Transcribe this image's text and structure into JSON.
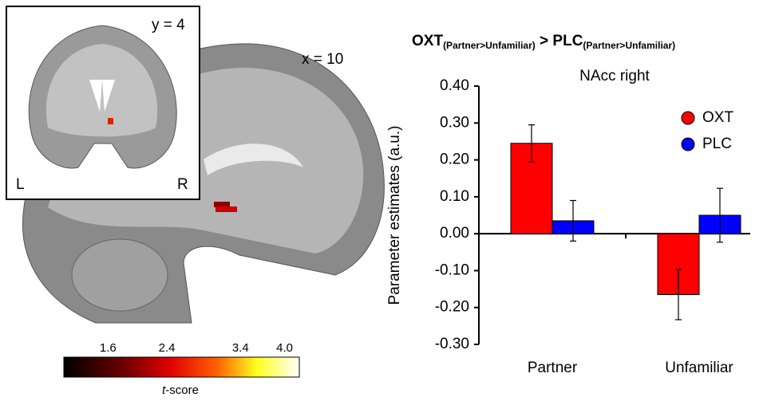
{
  "chart_data": {
    "type": "bar",
    "title": {
      "main1": "OXT",
      "sub1": "(Partner>Unfamiliar)",
      "main2": " > PLC",
      "sub2": "(Partner>Unfamiliar)"
    },
    "subtitle": "NAcc right",
    "y_label": "Parameter estimates (a.u.)",
    "categories": [
      "Partner",
      "Unfamiliar"
    ],
    "series": [
      {
        "name": "OXT",
        "color": "#ff0000",
        "values": [
          0.245,
          -0.165
        ],
        "errors": [
          0.05,
          0.068
        ]
      },
      {
        "name": "PLC",
        "color": "#0000ff",
        "values": [
          0.035,
          0.05
        ],
        "errors": [
          0.055,
          0.073
        ]
      }
    ],
    "ylim": [
      -0.3,
      0.4
    ],
    "yticks": [
      {
        "value": 0.4,
        "label": "0.40"
      },
      {
        "value": 0.3,
        "label": "0.30"
      },
      {
        "value": 0.2,
        "label": "0.20"
      },
      {
        "value": 0.1,
        "label": "0.10"
      },
      {
        "value": 0,
        "label": "0.00"
      },
      {
        "value": -0.1,
        "label": "-0.10"
      },
      {
        "value": -0.2,
        "label": "-0.20"
      },
      {
        "value": -0.3,
        "label": "-0.30"
      }
    ],
    "grid": false,
    "legend": "upper-right"
  },
  "brain": {
    "coronal_label": "y = 4",
    "sagittal_label": "x = 10",
    "left": "L",
    "right": "R"
  },
  "colorbar": {
    "label_t": "t",
    "label_rest": "-score",
    "lim": [
      1.0,
      4.2
    ],
    "ticks": [
      1.6,
      2.4,
      3.4,
      {
        "value": 4,
        "label": "4.0"
      }
    ]
  }
}
